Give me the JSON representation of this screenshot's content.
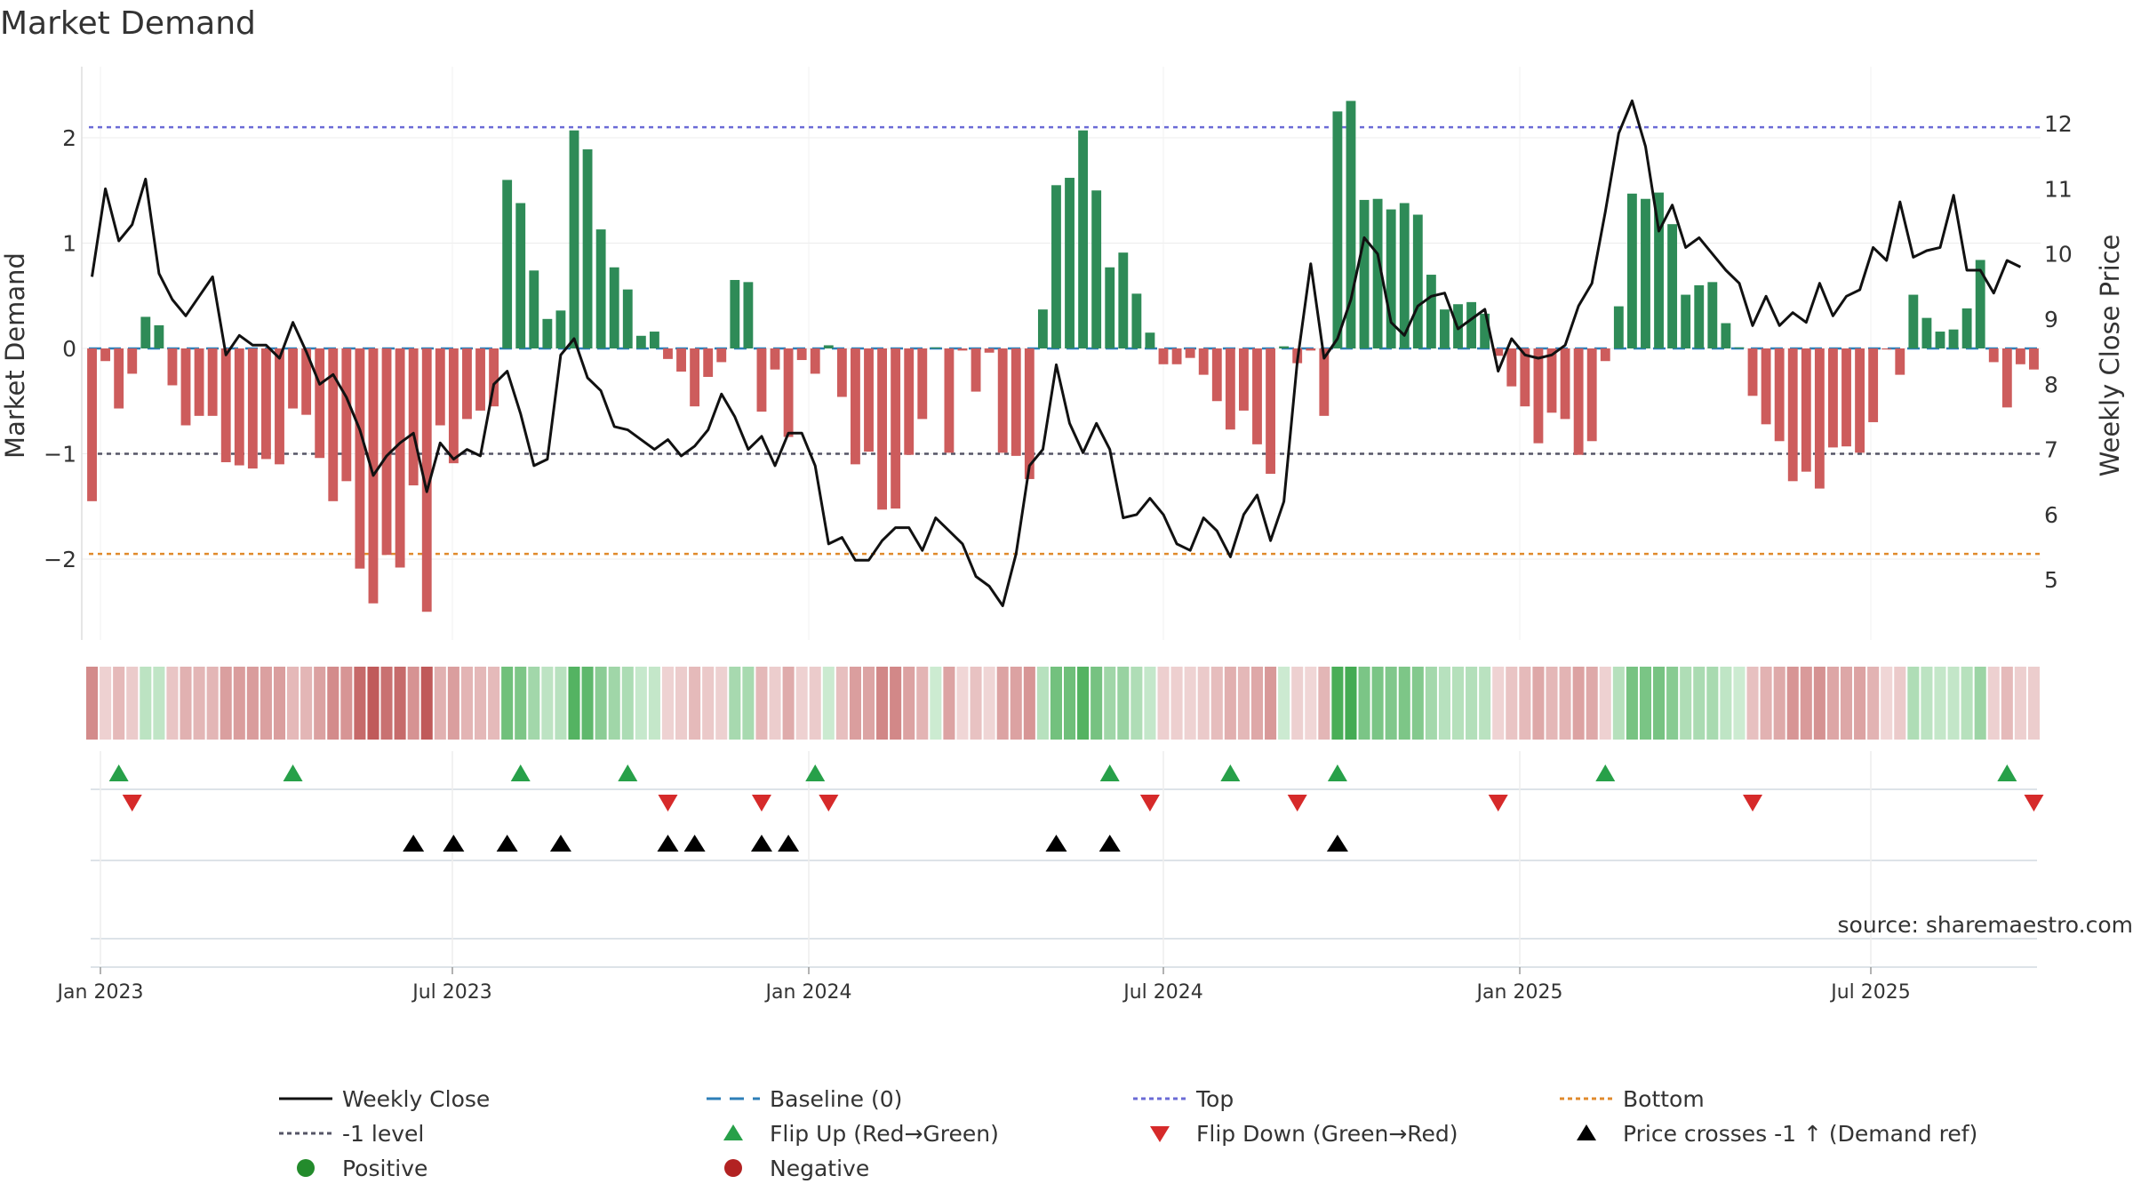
{
  "chart_data": {
    "type": "bar+line",
    "title": "Market Demand",
    "ylabel_left": "Market Demand",
    "ylabel_right": "Weekly Close Price",
    "left_ticks": [
      "−2",
      "−1",
      "0",
      "1",
      "2"
    ],
    "left_tick_values": [
      -2,
      -1,
      0,
      1,
      2
    ],
    "right_ticks": [
      "5",
      "6",
      "7",
      "8",
      "9",
      "10",
      "11",
      "12"
    ],
    "right_tick_values": [
      5,
      6,
      7,
      8,
      9,
      10,
      11,
      12
    ],
    "x_ticks": [
      "Jan 2023",
      "Jul 2023",
      "Jan 2024",
      "Jul 2024",
      "Jan 2025",
      "Jul 2025"
    ],
    "ylim_left": [
      -2.75,
      2.6
    ],
    "ylim_right": [
      4.05,
      12.9
    ],
    "reference_lines": {
      "top": 2.1,
      "bottom": -1.95,
      "minus_one": -1.0,
      "baseline": 0
    },
    "demand": [
      -1.45,
      -0.12,
      -0.57,
      -0.24,
      0.3,
      0.22,
      -0.35,
      -0.73,
      -0.64,
      -0.64,
      -1.08,
      -1.11,
      -1.14,
      -1.05,
      -1.1,
      -0.57,
      -0.63,
      -1.04,
      -1.45,
      -1.26,
      -2.09,
      -2.42,
      -1.96,
      -2.08,
      -1.3,
      -2.5,
      -0.73,
      -1.09,
      -0.67,
      -0.59,
      -0.55,
      1.6,
      1.38,
      0.74,
      0.28,
      0.36,
      2.07,
      1.89,
      1.13,
      0.77,
      0.56,
      0.12,
      0.16,
      -0.1,
      -0.22,
      -0.55,
      -0.27,
      -0.13,
      0.65,
      0.63,
      -0.6,
      -0.2,
      -0.84,
      -0.11,
      -0.24,
      0.03,
      -0.46,
      -1.1,
      -0.98,
      -1.53,
      -1.52,
      -1.01,
      -0.67,
      0.01,
      -0.99,
      -0.02,
      -0.41,
      -0.04,
      -0.99,
      -1.02,
      -1.24,
      0.37,
      1.55,
      1.62,
      2.07,
      1.5,
      0.77,
      0.91,
      0.52,
      0.15,
      -0.15,
      -0.15,
      -0.09,
      -0.25,
      -0.5,
      -0.77,
      -0.59,
      -0.91,
      -1.19,
      0.02,
      -0.14,
      -0.02,
      -0.64,
      2.25,
      2.35,
      1.41,
      1.42,
      1.32,
      1.38,
      1.27,
      0.7,
      0.37,
      0.42,
      0.44,
      0.33,
      -0.07,
      -0.36,
      -0.55,
      -0.9,
      -0.61,
      -0.67,
      -1.01,
      -0.88,
      -0.12,
      0.4,
      1.47,
      1.42,
      1.48,
      1.18,
      0.51,
      0.6,
      0.63,
      0.24,
      0.01,
      -0.45,
      -0.72,
      -0.88,
      -1.26,
      -1.17,
      -1.33,
      -0.94,
      -0.93,
      -0.99,
      -0.7,
      -0.01,
      -0.25,
      0.51,
      0.29,
      0.16,
      0.18,
      0.38,
      0.84,
      -0.13,
      -0.56,
      -0.15,
      -0.2
    ],
    "weekly_close": [
      9.65,
      11.0,
      10.2,
      10.45,
      11.15,
      9.7,
      9.3,
      9.05,
      9.35,
      9.65,
      8.45,
      8.75,
      8.6,
      8.6,
      8.4,
      8.95,
      8.5,
      8.0,
      8.15,
      7.8,
      7.3,
      6.6,
      6.9,
      7.1,
      7.25,
      6.35,
      7.1,
      6.85,
      7.0,
      6.9,
      8.0,
      8.2,
      7.55,
      6.75,
      6.85,
      8.45,
      8.7,
      8.1,
      7.9,
      7.35,
      7.3,
      7.15,
      7.0,
      7.15,
      6.9,
      7.05,
      7.3,
      7.85,
      7.5,
      7.0,
      7.2,
      6.75,
      7.25,
      7.25,
      6.75,
      5.55,
      5.65,
      5.3,
      5.3,
      5.6,
      5.8,
      5.8,
      5.45,
      5.95,
      5.75,
      5.55,
      5.05,
      4.9,
      4.6,
      5.4,
      6.75,
      7.0,
      8.3,
      7.4,
      6.95,
      7.4,
      7.0,
      5.95,
      6.0,
      6.25,
      6.0,
      5.55,
      5.45,
      5.95,
      5.75,
      5.35,
      6.0,
      6.3,
      5.6,
      6.2,
      8.35,
      9.85,
      8.4,
      8.7,
      9.3,
      10.25,
      10.0,
      8.95,
      8.75,
      9.2,
      9.35,
      9.4,
      8.85,
      9.0,
      9.15,
      8.2,
      8.7,
      8.45,
      8.4,
      8.45,
      8.6,
      9.2,
      9.55,
      10.65,
      11.85,
      12.35,
      11.65,
      10.35,
      10.75,
      10.1,
      10.25,
      10.0,
      9.75,
      9.55,
      8.9,
      9.35,
      8.9,
      9.1,
      8.95,
      9.55,
      9.05,
      9.35,
      9.45,
      10.1,
      9.9,
      10.8,
      9.95,
      10.05,
      10.1,
      10.9,
      9.75,
      9.75,
      9.4,
      9.9,
      9.8
    ],
    "heat_strip": "demand intensity band",
    "flip_up_weeks": [
      2,
      15,
      32,
      40,
      54,
      76,
      85,
      93,
      113,
      143
    ],
    "flip_down_weeks": [
      3,
      43,
      50,
      55,
      79,
      90,
      105,
      124,
      145
    ],
    "price_cross_weeks": [
      24,
      27,
      31,
      35,
      43,
      45,
      50,
      52,
      72,
      76,
      93
    ],
    "legend": [
      {
        "key": "weekly_close",
        "label": "Weekly Close",
        "symbol": "line",
        "color": "#111111"
      },
      {
        "key": "baseline",
        "label": "Baseline (0)",
        "symbol": "dashed",
        "color": "#2e7fb8"
      },
      {
        "key": "top",
        "label": "Top",
        "symbol": "dotted",
        "color": "#6b6bd6"
      },
      {
        "key": "bottom",
        "label": "Bottom",
        "symbol": "dotted",
        "color": "#e08a2c"
      },
      {
        "key": "minus_one",
        "label": "-1 level",
        "symbol": "dotted",
        "color": "#555566"
      },
      {
        "key": "flip_up",
        "label": "Flip Up (Red→Green)",
        "symbol": "triangle-up",
        "color": "#27a049"
      },
      {
        "key": "flip_down",
        "label": "Flip Down (Green→Red)",
        "symbol": "triangle-down",
        "color": "#d62a2a"
      },
      {
        "key": "price_cross",
        "label": "Price crosses -1 ↑ (Demand ref)",
        "symbol": "triangle-up",
        "color": "#000000"
      },
      {
        "key": "positive",
        "label": "Positive",
        "symbol": "circle",
        "color": "#238b2c"
      },
      {
        "key": "negative",
        "label": "Negative",
        "symbol": "circle",
        "color": "#b22222"
      }
    ],
    "source": "source: sharemaestro.com"
  },
  "colors": {
    "positive_bar": "#2e8b57",
    "negative_bar": "#cd5c5c",
    "price_line": "#111111",
    "axis_text": "#333333",
    "grid": "#ececec"
  }
}
